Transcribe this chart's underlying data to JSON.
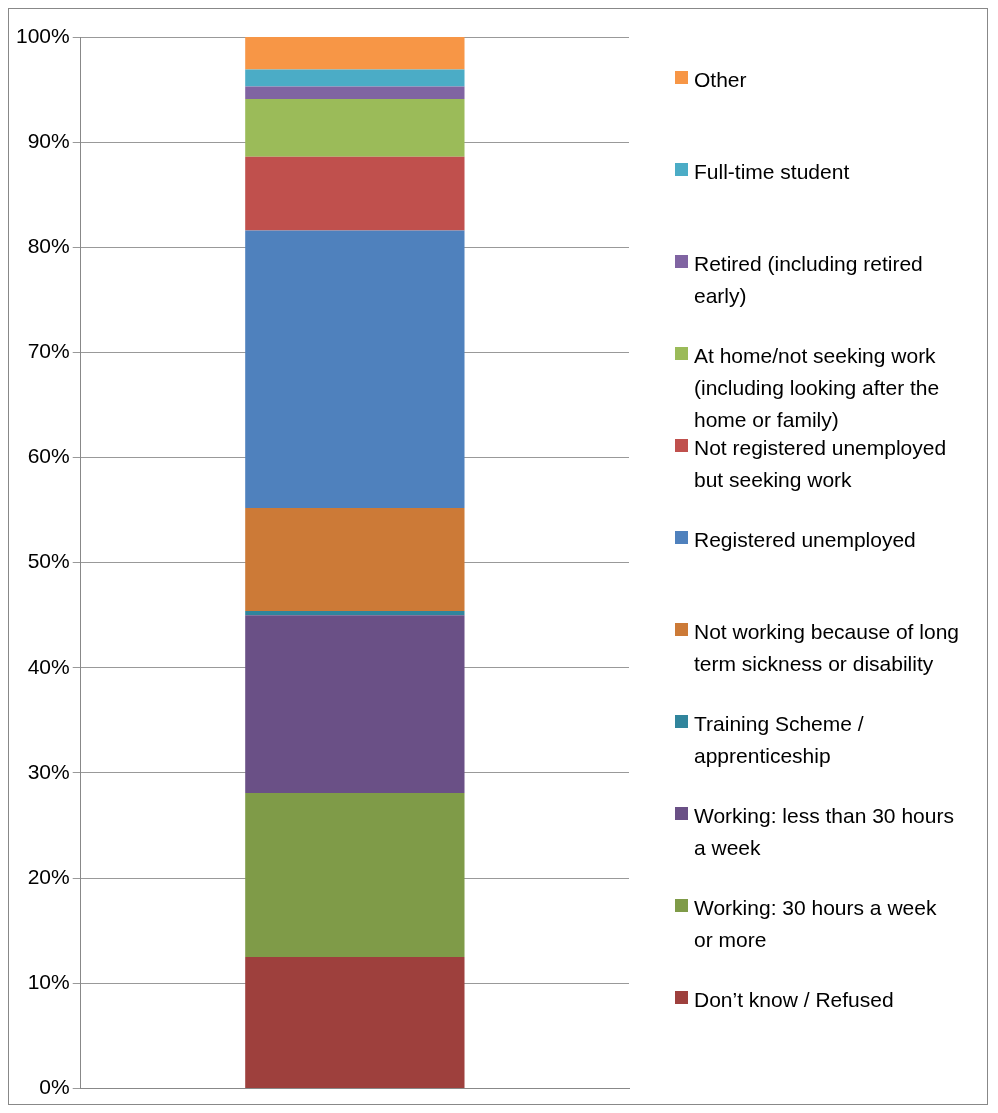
{
  "chart_data": {
    "type": "bar",
    "stacked": true,
    "categories": [
      null
    ],
    "ylim": [
      0,
      100
    ],
    "yticks": [
      {
        "value": 0,
        "label": "0%"
      },
      {
        "value": 10,
        "label": "10%"
      },
      {
        "value": 20,
        "label": "20%"
      },
      {
        "value": 30,
        "label": "30%"
      },
      {
        "value": 40,
        "label": "40%"
      },
      {
        "value": 50,
        "label": "50%"
      },
      {
        "value": 60,
        "label": "60%"
      },
      {
        "value": 70,
        "label": "70%"
      },
      {
        "value": 80,
        "label": "80%"
      },
      {
        "value": 90,
        "label": "90%"
      },
      {
        "value": 100,
        "label": "100%"
      }
    ],
    "grid": "y",
    "legend": "right",
    "series": [
      {
        "name": "Don’t know / Refused",
        "color": "#9e403d",
        "values": [
          12.5
        ]
      },
      {
        "name": "Working: 30 hours a week or more",
        "color": "#7f9b48",
        "values": [
          15.6
        ]
      },
      {
        "name": "Working: less than 30 hours a week",
        "color": "#6a5086",
        "values": [
          16.9
        ]
      },
      {
        "name": "Training Scheme / apprenticeship",
        "color": "#31859c",
        "values": [
          0.4
        ]
      },
      {
        "name": "Not working because of long term sickness or disability",
        "color": "#cc7a37",
        "values": [
          9.8
        ]
      },
      {
        "name": "Registered unemployed",
        "color": "#4f81bd",
        "values": [
          26.4
        ]
      },
      {
        "name": "Not registered unemployed but seeking work",
        "color": "#c0504d",
        "values": [
          7.0
        ]
      },
      {
        "name": "At home/not seeking work (including looking after the home or family)",
        "color": "#9bbb59",
        "values": [
          5.5
        ]
      },
      {
        "name": "Retired (including retired early)",
        "color": "#8064a2",
        "values": [
          1.2
        ]
      },
      {
        "name": "Full-time student",
        "color": "#4bacc6",
        "values": [
          1.6
        ]
      },
      {
        "name": "Other",
        "color": "#f79646",
        "values": [
          3.1
        ]
      }
    ]
  }
}
